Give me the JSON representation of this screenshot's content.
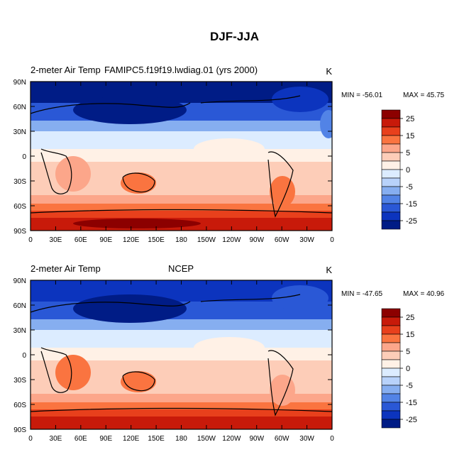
{
  "title": "DJF-JJA",
  "panels": [
    {
      "left_label": "2-meter Air Temp",
      "center_label": "FAMIPC5.f19f19.lwdiag.01 (yrs 2000)",
      "units": "K",
      "min_text": "MIN = -56.01",
      "max_text": "MAX =  45.75"
    },
    {
      "left_label": "2-meter Air Temp",
      "center_label": "NCEP",
      "units": "K",
      "min_text": "MIN = -47.65",
      "max_text": "MAX =  40.96"
    }
  ],
  "x_ticks": [
    "0",
    "30E",
    "60E",
    "90E",
    "120E",
    "150E",
    "180",
    "150W",
    "120W",
    "90W",
    "60W",
    "30W",
    "0"
  ],
  "y_ticks": [
    "90N",
    "60N",
    "30N",
    "0",
    "30S",
    "60S",
    "90S"
  ],
  "colorbar_labels": [
    "25",
    "15",
    "5",
    "0",
    "-5",
    "-15",
    "-25"
  ],
  "colorbar_colors": [
    "#8c0000",
    "#c81a0a",
    "#e8401c",
    "#fa7440",
    "#fca68a",
    "#fdcdb8",
    "#fff1e6",
    "#dcecff",
    "#b8d2fa",
    "#86aef0",
    "#5283e6",
    "#2a58d6",
    "#0c34be",
    "#001c86"
  ]
}
